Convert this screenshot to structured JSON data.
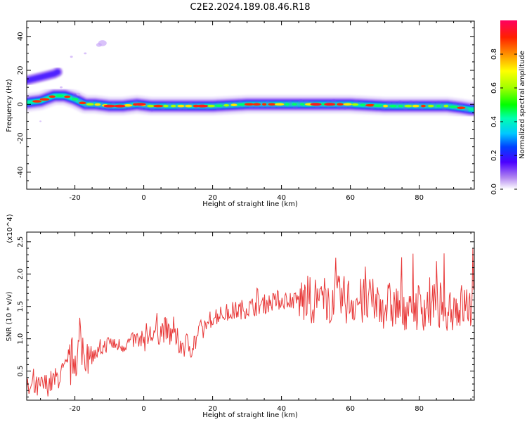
{
  "title": "C2E2.2024.189.08.46.R18",
  "colors": {
    "snr_line": "#e83a3a",
    "axis": "#000000"
  },
  "chart_data": [
    {
      "type": "heatmap",
      "title": "C2E2.2024.189.08.46.R18",
      "xlabel": "Height of straight line (km)",
      "ylabel": "Frequency (Hz)",
      "xlim": [
        -34,
        96
      ],
      "ylim": [
        -50,
        49
      ],
      "xticks": [
        -20,
        0,
        20,
        40,
        60,
        80
      ],
      "yticks": [
        40,
        20,
        0,
        -20,
        -40
      ],
      "xtick_labels": [
        "-20",
        "0",
        "20",
        "40",
        "60",
        "80"
      ],
      "ytick_labels": [
        "40",
        "20",
        "0",
        "-20",
        "-40"
      ],
      "colorbar": {
        "label": "Normalized spectral amplitude",
        "range": [
          0.0,
          1.0
        ],
        "ticks": [
          0.0,
          0.2,
          0.4,
          0.6,
          0.8
        ],
        "tick_labels": [
          "0.0",
          "0.2",
          "0.4",
          "0.6",
          "0.8"
        ]
      },
      "ridge": {
        "x": [
          -34,
          -30,
          -26,
          -23,
          -20,
          -17,
          -14,
          -10,
          -6,
          -2,
          2,
          8,
          14,
          20,
          30,
          40,
          50,
          60,
          70,
          80,
          88,
          92,
          95
        ],
        "y": [
          1,
          2,
          5,
          5,
          3,
          0,
          0,
          -1,
          -1,
          0,
          -1,
          -1,
          -1,
          -1,
          0,
          0,
          0,
          0,
          -1,
          -1,
          -1,
          -2,
          -3
        ]
      },
      "upper_branch": {
        "x": [
          -34,
          -32,
          -30,
          -28,
          -26,
          -25
        ],
        "y": [
          14,
          15,
          16,
          17,
          18,
          19
        ]
      },
      "grid": false
    },
    {
      "type": "line",
      "xlabel": "Height of straight line (km)",
      "ylabel": "SNR (10 * v/v)",
      "y_multiplier": "(x10^4)",
      "xlim": [
        -34,
        96
      ],
      "ylim": [
        0.05,
        2.65
      ],
      "xticks": [
        -20,
        0,
        20,
        40,
        60,
        80
      ],
      "yticks": [
        0.5,
        1.0,
        1.5,
        2.0,
        2.5
      ],
      "xtick_labels": [
        "-20",
        "0",
        "20",
        "40",
        "60",
        "80"
      ],
      "ytick_labels": [
        "0.5",
        "1.0",
        "1.5",
        "2.0",
        "2.5"
      ],
      "series": [
        {
          "x": [
            -34,
            -30,
            -26,
            -22,
            -20,
            -18,
            -16,
            -14,
            -12,
            -10,
            -8,
            -6,
            -4,
            -2,
            0,
            2,
            4,
            6,
            8,
            10,
            12,
            14,
            16,
            18,
            20,
            24,
            28,
            32,
            36,
            40,
            44,
            48,
            52,
            56,
            60,
            64,
            68,
            72,
            76,
            80,
            84,
            88,
            92,
            95
          ],
          "y": [
            0.2,
            0.25,
            0.35,
            0.55,
            0.75,
            0.85,
            0.8,
            0.75,
            0.85,
            0.95,
            0.9,
            0.9,
            0.95,
            1.0,
            1.0,
            1.05,
            1.1,
            1.15,
            1.05,
            0.95,
            0.9,
            0.9,
            1.05,
            1.2,
            1.35,
            1.4,
            1.45,
            1.5,
            1.55,
            1.6,
            1.6,
            1.6,
            1.6,
            1.6,
            1.6,
            1.55,
            1.55,
            1.5,
            1.5,
            1.5,
            1.5,
            1.5,
            1.5,
            1.5
          ]
        }
      ],
      "grid": false
    }
  ]
}
